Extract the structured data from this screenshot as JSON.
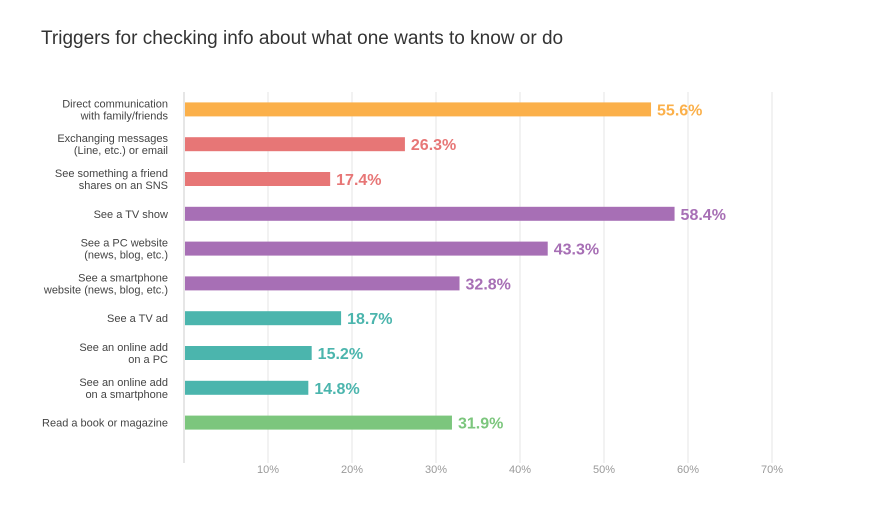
{
  "chart_data": {
    "type": "bar",
    "orientation": "horizontal",
    "title": "Triggers for checking info about what one wants to know or do",
    "xlabel": "",
    "ylabel": "",
    "xlim": [
      0,
      72
    ],
    "grid": true,
    "x_ticks": [
      "10%",
      "20%",
      "30%",
      "40%",
      "50%",
      "60%",
      "70%"
    ],
    "categories": [
      [
        "Direct communication",
        "with family/friends"
      ],
      [
        "Exchanging messages",
        "(Line, etc.) or email"
      ],
      [
        "See something a friend",
        "shares on an SNS"
      ],
      [
        "See a TV show"
      ],
      [
        "See a PC website",
        "(news, blog, etc.)"
      ],
      [
        "See a smartphone",
        "website (news, blog, etc.)"
      ],
      [
        "See a TV ad"
      ],
      [
        "See an online add",
        "on a PC"
      ],
      [
        "See an online add",
        "on a smartphone"
      ],
      [
        "Read a book or magazine"
      ]
    ],
    "values": [
      55.6,
      26.3,
      17.4,
      58.4,
      43.3,
      32.8,
      18.7,
      15.2,
      14.8,
      31.9
    ],
    "value_labels": [
      "55.6%",
      "26.3%",
      "17.4%",
      "58.4%",
      "43.3%",
      "32.8%",
      "18.7%",
      "15.2%",
      "14.8%",
      "31.9%"
    ],
    "colors": [
      "#fbb04a",
      "#e77676",
      "#e77676",
      "#a76fb5",
      "#a76fb5",
      "#a76fb5",
      "#4bb5ad",
      "#4bb5ad",
      "#4bb5ad",
      "#7cc67d"
    ]
  }
}
